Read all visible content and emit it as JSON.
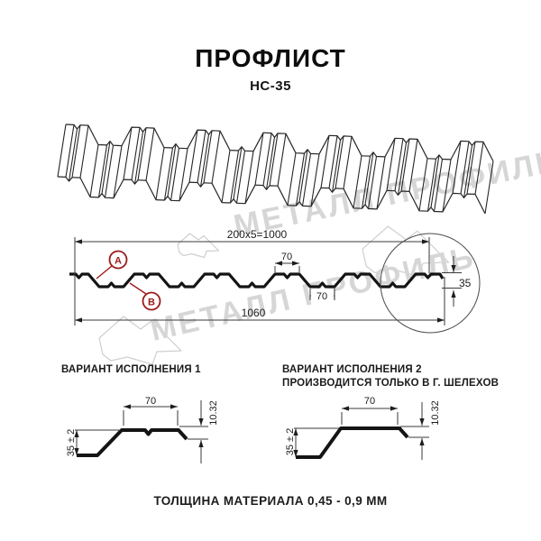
{
  "title": "ПРОФЛИСТ",
  "subtitle": "НС-35",
  "watermark": {
    "text": "МЕТАЛЛ ПРОФИЛЬ",
    "color": "#d6d6d6"
  },
  "cross_section": {
    "dim_module_width": "200x5=1000",
    "dim_overall_width": "1060",
    "dim_top_flange": "70",
    "dim_bottom_flange": "70",
    "dim_height": "35",
    "label_a": "А",
    "label_b": "В",
    "accent_color": "#9c1a1a"
  },
  "variant1": {
    "header": "ВАРИАНТ ИСПОЛНЕНИЯ 1",
    "dim_width": "70",
    "dim_height": "35 ± 2",
    "dim_edge": "10.32"
  },
  "variant2": {
    "header": "ВАРИАНТ ИСПОЛНЕНИЯ 2",
    "subheader": "ПРОИЗВОДИТСЯ ТОЛЬКО В Г. ШЕЛЕХОВ",
    "dim_width": "70",
    "dim_height": "35 ± 2",
    "dim_edge": "10.32"
  },
  "footer": "ТОЛЩИНА МАТЕРИАЛА 0,45 - 0,9 ММ"
}
